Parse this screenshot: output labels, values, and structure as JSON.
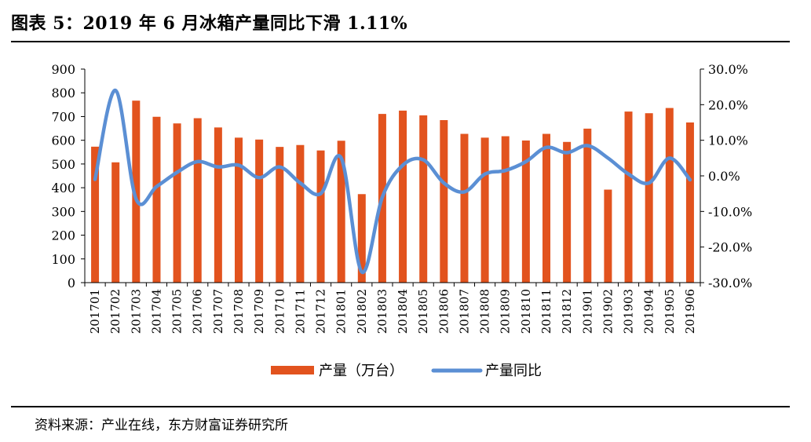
{
  "header": {
    "title": "图表 5：2019 年 6 月冰箱产量同比下滑 1.11%"
  },
  "footer": {
    "source": "资料来源：产业在线，东方财富证券研究所"
  },
  "colors": {
    "bar": "#E2531E",
    "line": "#5B8FD4",
    "axis": "#000000"
  },
  "chart_data": {
    "type": "bar",
    "categories": [
      "201701",
      "201702",
      "201703",
      "201704",
      "201705",
      "201706",
      "201707",
      "201708",
      "201709",
      "201710",
      "201711",
      "201712",
      "201801",
      "201802",
      "201803",
      "201804",
      "201805",
      "201806",
      "201807",
      "201808",
      "201809",
      "201810",
      "201811",
      "201812",
      "201901",
      "201902",
      "201903",
      "201904",
      "201905",
      "201906"
    ],
    "series": [
      {
        "name": "产量（万台）",
        "type": "bar",
        "axis": "left",
        "values": [
          573,
          507,
          767,
          699,
          671,
          693,
          654,
          611,
          603,
          572,
          580,
          557,
          598,
          373,
          711,
          725,
          705,
          685,
          627,
          611,
          617,
          599,
          627,
          593,
          649,
          392,
          721,
          714,
          736,
          675
        ]
      },
      {
        "name": "产量同比",
        "type": "line",
        "axis": "right",
        "values": [
          -1.0,
          24.0,
          -6.5,
          -3.0,
          1.0,
          4.0,
          2.5,
          3.0,
          -0.5,
          2.5,
          -2.0,
          -5.0,
          5.0,
          -27.0,
          -6.0,
          3.0,
          4.5,
          -2.0,
          -4.5,
          0.5,
          1.5,
          4.0,
          8.0,
          6.5,
          8.5,
          5.0,
          0.5,
          -2.0,
          5.0,
          -1.11
        ]
      }
    ],
    "y_left": {
      "ylim": [
        0,
        900
      ],
      "ticks": [
        "0",
        "100",
        "200",
        "300",
        "400",
        "500",
        "600",
        "700",
        "800",
        "900"
      ]
    },
    "y_right": {
      "ylim": [
        -30,
        30
      ],
      "ticks": [
        "-30.0%",
        "-20.0%",
        "-10.0%",
        "0.0%",
        "10.0%",
        "20.0%",
        "30.0%"
      ]
    },
    "legend": {
      "position": "bottom",
      "items": [
        "产量（万台）",
        "产量同比"
      ]
    }
  }
}
